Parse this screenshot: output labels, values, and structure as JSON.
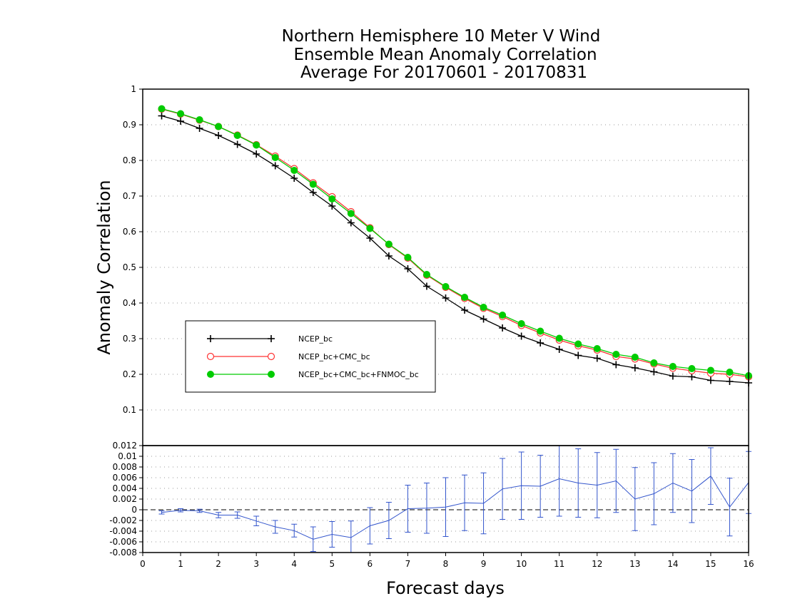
{
  "chart_data": [
    {
      "type": "line",
      "title": [
        "Northern Hemisphere 10 Meter V Wind",
        "Ensemble Mean Anomaly Correlation",
        "Average For 20170601 - 20170831"
      ],
      "xlabel": "Forecast days",
      "ylabel": "Anomaly Correlation",
      "xlim": [
        0,
        16
      ],
      "ylim": [
        0,
        1
      ],
      "x_ticks": [
        "0",
        "1",
        "2",
        "3",
        "4",
        "5",
        "6",
        "7",
        "8",
        "9",
        "10",
        "11",
        "12",
        "13",
        "14",
        "15",
        "16"
      ],
      "y_ticks": [
        "0.1",
        "0.2",
        "0.3",
        "0.4",
        "0.5",
        "0.6",
        "0.7",
        "0.8",
        "0.9",
        "1"
      ],
      "grid": "horizontal dotted",
      "legend_placement": "lower-left",
      "x": [
        0.5,
        1,
        1.5,
        2,
        2.5,
        3,
        3.5,
        4,
        4.5,
        5,
        5.5,
        6,
        6.5,
        7,
        7.5,
        8,
        8.5,
        9,
        9.5,
        10,
        10.5,
        11,
        11.5,
        12,
        12.5,
        13,
        13.5,
        14,
        14.5,
        15,
        15.5,
        16
      ],
      "series": [
        {
          "name": "NCEP_bc",
          "color": "#000000",
          "marker": "plus",
          "values": [
            0.925,
            0.91,
            0.89,
            0.87,
            0.845,
            0.818,
            0.785,
            0.75,
            0.71,
            0.672,
            0.625,
            0.582,
            0.532,
            0.496,
            0.447,
            0.414,
            0.38,
            0.355,
            0.33,
            0.307,
            0.288,
            0.27,
            0.253,
            0.245,
            0.227,
            0.218,
            0.207,
            0.195,
            0.193,
            0.183,
            0.18,
            0.176
          ]
        },
        {
          "name": "NCEP_bc+CMC_bc",
          "color": "#ff3333",
          "marker": "open-circle",
          "values": [
            0.944,
            0.93,
            0.913,
            0.895,
            0.871,
            0.844,
            0.812,
            0.777,
            0.737,
            0.698,
            0.656,
            0.611,
            0.564,
            0.526,
            0.478,
            0.444,
            0.413,
            0.385,
            0.362,
            0.337,
            0.316,
            0.296,
            0.28,
            0.268,
            0.25,
            0.243,
            0.229,
            0.217,
            0.21,
            0.203,
            0.2,
            0.193
          ]
        },
        {
          "name": "NCEP_bc+CMC_bc+FNMOC_bc",
          "color": "#00cc00",
          "marker": "filled-circle",
          "values": [
            0.945,
            0.931,
            0.914,
            0.895,
            0.87,
            0.843,
            0.808,
            0.772,
            0.733,
            0.692,
            0.651,
            0.609,
            0.565,
            0.528,
            0.48,
            0.446,
            0.416,
            0.388,
            0.366,
            0.342,
            0.321,
            0.301,
            0.285,
            0.272,
            0.256,
            0.248,
            0.232,
            0.222,
            0.216,
            0.211,
            0.206,
            0.196
          ]
        }
      ]
    },
    {
      "type": "line",
      "xlim": [
        0,
        16
      ],
      "ylim": [
        -0.008,
        0.012
      ],
      "y_ticks": [
        "0.012",
        "0.01",
        "0.008",
        "0.006",
        "0.004",
        "0.002",
        "0",
        "-0.002",
        "-0.004",
        "-0.006",
        "-0.008"
      ],
      "grid": "horizontal dotted",
      "x": [
        0.5,
        1,
        1.5,
        2,
        2.5,
        3,
        3.5,
        4,
        4.5,
        5,
        5.5,
        6,
        6.5,
        7,
        7.5,
        8,
        8.5,
        9,
        9.5,
        10,
        10.5,
        11,
        11.5,
        12,
        12.5,
        13,
        13.5,
        14,
        14.5,
        15,
        15.5,
        16
      ],
      "series": [
        {
          "color": "#3355cc",
          "marker": "errorbar",
          "values": [
            -0.0005,
            -0.0001,
            -0.0002,
            -0.001,
            -0.001,
            -0.0021,
            -0.0032,
            -0.0039,
            -0.0055,
            -0.0046,
            -0.0052,
            -0.003,
            -0.002,
            0.0002,
            0.0003,
            0.0005,
            0.0013,
            0.0012,
            0.0039,
            0.0045,
            0.0044,
            0.0058,
            0.005,
            0.0046,
            0.0054,
            0.002,
            0.003,
            0.005,
            0.0035,
            0.0063,
            0.0005,
            0.0051
          ],
          "error": [
            0.0003,
            0.0003,
            0.0003,
            0.0005,
            0.0006,
            0.0009,
            0.0012,
            0.0012,
            0.0023,
            0.0024,
            0.0031,
            0.0034,
            0.0034,
            0.0044,
            0.0047,
            0.0055,
            0.0052,
            0.0057,
            0.0057,
            0.0063,
            0.0058,
            0.007,
            0.0064,
            0.0061,
            0.0059,
            0.0059,
            0.0058,
            0.0055,
            0.0059,
            0.0053,
            0.0054,
            0.0058
          ]
        }
      ]
    }
  ]
}
